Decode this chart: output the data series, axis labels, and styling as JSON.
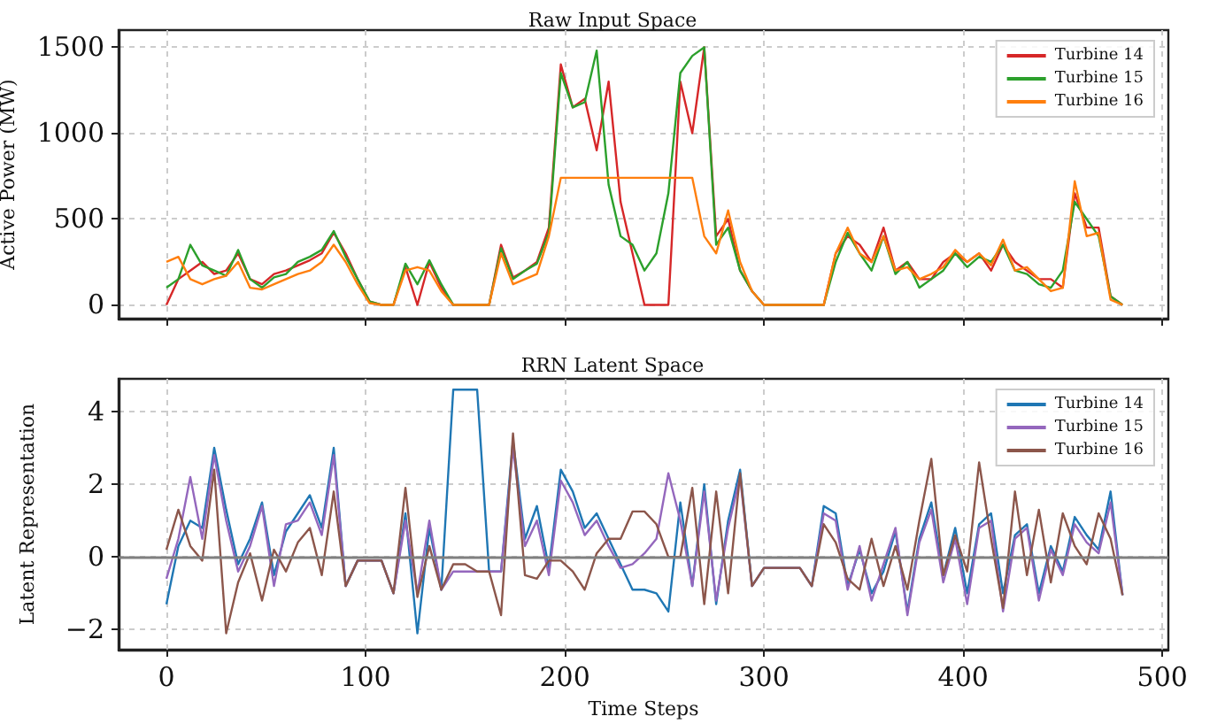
{
  "chart_data": [
    {
      "type": "line",
      "title": "Raw Input Space",
      "ylabel": "Active Power (MW)",
      "xlim": [
        -24,
        503
      ],
      "ylim": [
        -80,
        1600
      ],
      "xticks": [
        0,
        100,
        200,
        300,
        400,
        500
      ],
      "yticks": [
        0,
        500,
        1000,
        1500
      ],
      "grid": true,
      "legend": "top right",
      "tick_labels": "y",
      "x": [
        0,
        6,
        12,
        18,
        24,
        30,
        36,
        42,
        48,
        54,
        60,
        66,
        72,
        78,
        84,
        90,
        96,
        102,
        108,
        114,
        120,
        126,
        132,
        138,
        144,
        150,
        156,
        162,
        168,
        174,
        180,
        186,
        192,
        198,
        204,
        210,
        216,
        222,
        228,
        234,
        240,
        246,
        252,
        258,
        264,
        270,
        276,
        282,
        288,
        294,
        300,
        306,
        312,
        318,
        324,
        330,
        336,
        342,
        348,
        354,
        360,
        366,
        372,
        378,
        384,
        390,
        396,
        402,
        408,
        414,
        420,
        426,
        432,
        438,
        444,
        450,
        456,
        462,
        468,
        474,
        480
      ],
      "series": [
        {
          "name": "Turbine 14",
          "color": "#d62728",
          "values": [
            0,
            150,
            200,
            250,
            180,
            200,
            300,
            150,
            120,
            180,
            200,
            230,
            260,
            300,
            420,
            300,
            150,
            20,
            0,
            0,
            220,
            0,
            250,
            100,
            0,
            0,
            0,
            0,
            350,
            160,
            200,
            250,
            450,
            1400,
            1150,
            1200,
            900,
            1300,
            600,
            300,
            0,
            0,
            0,
            1300,
            1000,
            1500,
            400,
            500,
            200,
            80,
            0,
            0,
            0,
            0,
            0,
            0,
            300,
            400,
            350,
            250,
            450,
            200,
            250,
            150,
            150,
            250,
            300,
            250,
            300,
            200,
            350,
            250,
            200,
            150,
            150,
            100,
            650,
            450,
            450,
            50,
            0
          ]
        },
        {
          "name": "Turbine 15",
          "color": "#2ca02c",
          "values": [
            100,
            150,
            350,
            230,
            200,
            170,
            320,
            150,
            100,
            160,
            180,
            250,
            280,
            320,
            430,
            280,
            150,
            20,
            0,
            0,
            240,
            120,
            260,
            120,
            0,
            0,
            0,
            0,
            330,
            150,
            200,
            240,
            420,
            1350,
            1150,
            1180,
            1480,
            700,
            400,
            350,
            200,
            300,
            650,
            1350,
            1450,
            1500,
            350,
            450,
            200,
            80,
            0,
            0,
            0,
            0,
            0,
            0,
            250,
            420,
            300,
            200,
            400,
            180,
            250,
            100,
            150,
            200,
            300,
            220,
            280,
            250,
            350,
            200,
            180,
            120,
            100,
            200,
            600,
            500,
            400,
            50,
            0
          ]
        },
        {
          "name": "Turbine 16",
          "color": "#ff7f0e",
          "values": [
            250,
            280,
            150,
            120,
            150,
            170,
            250,
            100,
            90,
            120,
            150,
            180,
            200,
            250,
            350,
            250,
            120,
            10,
            0,
            0,
            200,
            220,
            200,
            80,
            0,
            0,
            0,
            0,
            300,
            120,
            150,
            180,
            400,
            740,
            740,
            740,
            740,
            740,
            740,
            740,
            740,
            740,
            740,
            740,
            740,
            400,
            300,
            550,
            250,
            80,
            0,
            0,
            0,
            0,
            0,
            0,
            300,
            450,
            300,
            250,
            400,
            200,
            220,
            150,
            180,
            220,
            320,
            250,
            300,
            230,
            380,
            200,
            220,
            150,
            80,
            100,
            720,
            400,
            420,
            30,
            0
          ]
        }
      ]
    },
    {
      "type": "line",
      "title": "RRN Latent Space",
      "xlabel": "Time Steps",
      "ylabel": "Latent Representation",
      "xlim": [
        -24,
        503
      ],
      "ylim": [
        -2.55,
        4.9
      ],
      "xticks": [
        0,
        100,
        200,
        300,
        400,
        500
      ],
      "yticks": [
        {
          "value": -2,
          "label": "−2"
        },
        0,
        2,
        4
      ],
      "grid": true,
      "legend": "top right",
      "ref_lines": [
        {
          "axis": "y",
          "value": 0,
          "color": "#808080"
        }
      ],
      "x": [
        0,
        6,
        12,
        18,
        24,
        30,
        36,
        42,
        48,
        54,
        60,
        66,
        72,
        78,
        84,
        90,
        96,
        102,
        108,
        114,
        120,
        126,
        132,
        138,
        144,
        150,
        156,
        162,
        168,
        174,
        180,
        186,
        192,
        198,
        204,
        210,
        216,
        222,
        228,
        234,
        240,
        246,
        252,
        258,
        264,
        270,
        276,
        282,
        288,
        294,
        300,
        306,
        312,
        318,
        324,
        330,
        336,
        342,
        348,
        354,
        360,
        366,
        372,
        378,
        384,
        390,
        396,
        402,
        408,
        414,
        420,
        426,
        432,
        438,
        444,
        450,
        456,
        462,
        468,
        474,
        480
      ],
      "series": [
        {
          "name": "Turbine 14",
          "color": "#1f77b4",
          "values": [
            -1.3,
            0.3,
            1.0,
            0.8,
            3.0,
            1.3,
            -0.2,
            0.5,
            1.5,
            -0.5,
            0.7,
            1.2,
            1.7,
            0.8,
            3.0,
            -0.8,
            -0.1,
            -0.1,
            -0.1,
            -1.0,
            1.2,
            -2.1,
            0.8,
            -0.9,
            4.6,
            4.6,
            4.6,
            -0.4,
            -0.4,
            3.2,
            0.5,
            1.4,
            -0.3,
            2.4,
            1.8,
            0.8,
            1.2,
            0.5,
            -0.2,
            -0.9,
            -0.9,
            -1.0,
            -1.5,
            1.5,
            -0.8,
            2.0,
            -1.3,
            1.0,
            2.4,
            -0.8,
            -0.3,
            -0.3,
            -0.3,
            -0.3,
            -0.8,
            1.4,
            1.2,
            -0.8,
            0.2,
            -1.0,
            -0.4,
            0.7,
            -1.5,
            0.5,
            1.5,
            -0.5,
            0.8,
            -1.0,
            0.9,
            1.2,
            -1.0,
            0.6,
            0.9,
            -1.0,
            0.3,
            -0.4,
            1.1,
            0.6,
            0.2,
            1.8,
            -1.05
          ]
        },
        {
          "name": "Turbine 15",
          "color": "#9467bd",
          "values": [
            -0.6,
            0.5,
            2.2,
            0.5,
            2.8,
            1.0,
            -0.4,
            0.3,
            1.4,
            -0.8,
            0.9,
            1.0,
            1.5,
            0.6,
            2.8,
            -0.8,
            -0.1,
            -0.1,
            -0.1,
            -1.0,
            1.0,
            -1.0,
            1.0,
            -0.9,
            -0.4,
            -0.4,
            -0.4,
            -0.4,
            -0.4,
            3.0,
            0.3,
            1.0,
            -0.5,
            2.1,
            1.5,
            0.6,
            1.0,
            0.3,
            -0.3,
            -0.2,
            0.1,
            0.5,
            2.3,
            1.0,
            -0.8,
            1.8,
            -1.2,
            0.8,
            2.2,
            -0.8,
            -0.3,
            -0.3,
            -0.3,
            -0.3,
            -0.8,
            1.2,
            1.0,
            -0.9,
            0.3,
            -1.2,
            -0.2,
            0.8,
            -1.6,
            0.4,
            1.3,
            -0.7,
            0.5,
            -1.3,
            0.8,
            1.0,
            -1.5,
            0.5,
            0.8,
            -1.2,
            0.2,
            -0.5,
            0.9,
            0.4,
            0.1,
            1.5,
            -1.05
          ]
        },
        {
          "name": "Turbine 16",
          "color": "#8c564b",
          "values": [
            0.2,
            1.3,
            0.3,
            -0.1,
            2.4,
            -2.1,
            -0.7,
            0.1,
            -1.2,
            0.2,
            -0.4,
            0.4,
            0.8,
            -0.5,
            1.8,
            -0.8,
            -0.1,
            -0.1,
            -0.1,
            -1.0,
            1.9,
            -1.1,
            0.3,
            -0.9,
            -0.2,
            -0.2,
            -0.4,
            -0.4,
            -1.6,
            3.4,
            -0.5,
            -0.6,
            -0.1,
            -0.1,
            -0.4,
            -0.9,
            0.1,
            0.5,
            0.5,
            1.25,
            1.25,
            0.9,
            0.0,
            0.0,
            1.9,
            -1.3,
            1.8,
            -1.0,
            2.3,
            -0.8,
            -0.3,
            -0.3,
            -0.3,
            -0.3,
            -0.8,
            0.9,
            0.4,
            -0.6,
            -0.9,
            0.5,
            -0.8,
            0.3,
            -0.9,
            1.0,
            2.7,
            -0.5,
            0.6,
            -0.4,
            2.6,
            0.5,
            -1.4,
            1.8,
            -0.5,
            1.3,
            -0.7,
            1.2,
            0.3,
            -0.2,
            1.2,
            0.5,
            -1.05
          ]
        }
      ]
    }
  ]
}
